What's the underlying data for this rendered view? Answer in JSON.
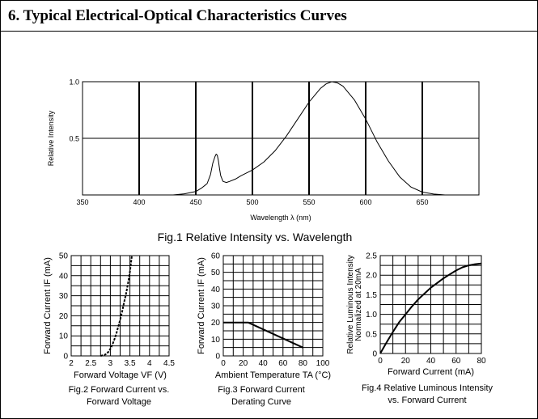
{
  "section": {
    "title": "6. Typical Electrical-Optical Characteristics Curves"
  },
  "chart_data": [
    {
      "type": "line",
      "id": "fig1",
      "caption": "Fig.1 Relative Intensity vs. Wavelength",
      "xlabel": "Wavelength λ (nm)",
      "ylabel": "Relative Intensity",
      "xlim": [
        350,
        700
      ],
      "ylim": [
        0,
        1.0
      ],
      "x_ticks": [
        350,
        400,
        450,
        500,
        550,
        600,
        650
      ],
      "y_ticks": [
        0.5,
        1.0
      ],
      "y_tick_labels": [
        "0.5",
        "1.0"
      ],
      "grid": true,
      "series": [
        {
          "x": [
            430,
            440,
            450,
            455,
            460,
            463,
            465,
            467,
            468,
            469,
            470,
            471,
            472,
            474,
            477,
            480,
            485,
            490,
            500,
            510,
            520,
            530,
            540,
            550,
            560,
            565,
            570,
            575,
            580,
            590,
            600,
            610,
            620,
            630,
            640,
            650,
            660,
            670
          ],
          "y": [
            0.0,
            0.01,
            0.03,
            0.06,
            0.1,
            0.18,
            0.28,
            0.34,
            0.36,
            0.35,
            0.3,
            0.23,
            0.17,
            0.12,
            0.11,
            0.12,
            0.14,
            0.17,
            0.22,
            0.29,
            0.39,
            0.52,
            0.67,
            0.82,
            0.94,
            0.98,
            1.0,
            0.99,
            0.96,
            0.84,
            0.67,
            0.47,
            0.3,
            0.16,
            0.07,
            0.025,
            0.008,
            0.0
          ]
        }
      ]
    },
    {
      "type": "line",
      "id": "fig2",
      "caption": [
        "Fig.2 Forward Current vs.",
        "Forward Voltage"
      ],
      "xlabel": "Forward Voltage VF (V)",
      "ylabel": "Forward Current IF (mA)",
      "xlim": [
        2.0,
        4.5
      ],
      "ylim": [
        0,
        50
      ],
      "x_ticks": [
        2.0,
        2.5,
        3.0,
        3.5,
        4.0,
        4.5
      ],
      "y_ticks": [
        0,
        10,
        20,
        30,
        40,
        50
      ],
      "grid": true,
      "series": [
        {
          "x": [
            2.75,
            2.85,
            2.9,
            2.95,
            3.0,
            3.05,
            3.1,
            3.15,
            3.2,
            3.25,
            3.3,
            3.35,
            3.4,
            3.45,
            3.5,
            3.55
          ],
          "y": [
            0,
            0.5,
            1,
            2,
            3.5,
            5.5,
            8,
            11,
            14.5,
            18,
            22,
            26.5,
            31,
            36,
            42,
            50
          ]
        }
      ]
    },
    {
      "type": "line",
      "id": "fig3",
      "caption": [
        "Fig.3 Forward Current",
        "Derating Curve"
      ],
      "xlabel": "Ambient Temperature TA (°C)",
      "ylabel": "Forward Current IF (mA)",
      "xlim": [
        0,
        100
      ],
      "ylim": [
        0,
        60
      ],
      "x_ticks": [
        0,
        20,
        40,
        60,
        80,
        100
      ],
      "y_ticks": [
        0,
        10,
        20,
        30,
        40,
        50,
        60
      ],
      "grid": true,
      "series": [
        {
          "x": [
            0,
            25,
            80
          ],
          "y": [
            20,
            20,
            5
          ]
        }
      ]
    },
    {
      "type": "line",
      "id": "fig4",
      "caption": [
        "Fig.4 Relative Luminous Intensity",
        "vs. Forward Current"
      ],
      "xlabel": "Forward Current (mA)",
      "ylabel": [
        "Relative Luminous Intensity",
        "Normalized at 20mA"
      ],
      "xlim": [
        0,
        80
      ],
      "ylim": [
        0,
        2.5
      ],
      "x_ticks": [
        0,
        20,
        40,
        60,
        80
      ],
      "y_ticks": [
        0,
        0.5,
        1.0,
        1.5,
        2.0,
        2.5
      ],
      "y_tick_labels": [
        "0",
        "0.5",
        "1.0",
        "1.5",
        "2.0",
        "2.5"
      ],
      "grid": true,
      "series": [
        {
          "x": [
            0,
            5,
            10,
            15,
            20,
            25,
            30,
            35,
            40,
            45,
            50,
            55,
            60,
            65,
            70,
            75,
            80
          ],
          "y": [
            0,
            0.28,
            0.55,
            0.8,
            1.0,
            1.2,
            1.38,
            1.53,
            1.68,
            1.8,
            1.92,
            2.02,
            2.12,
            2.2,
            2.25,
            2.28,
            2.3
          ]
        }
      ]
    }
  ]
}
